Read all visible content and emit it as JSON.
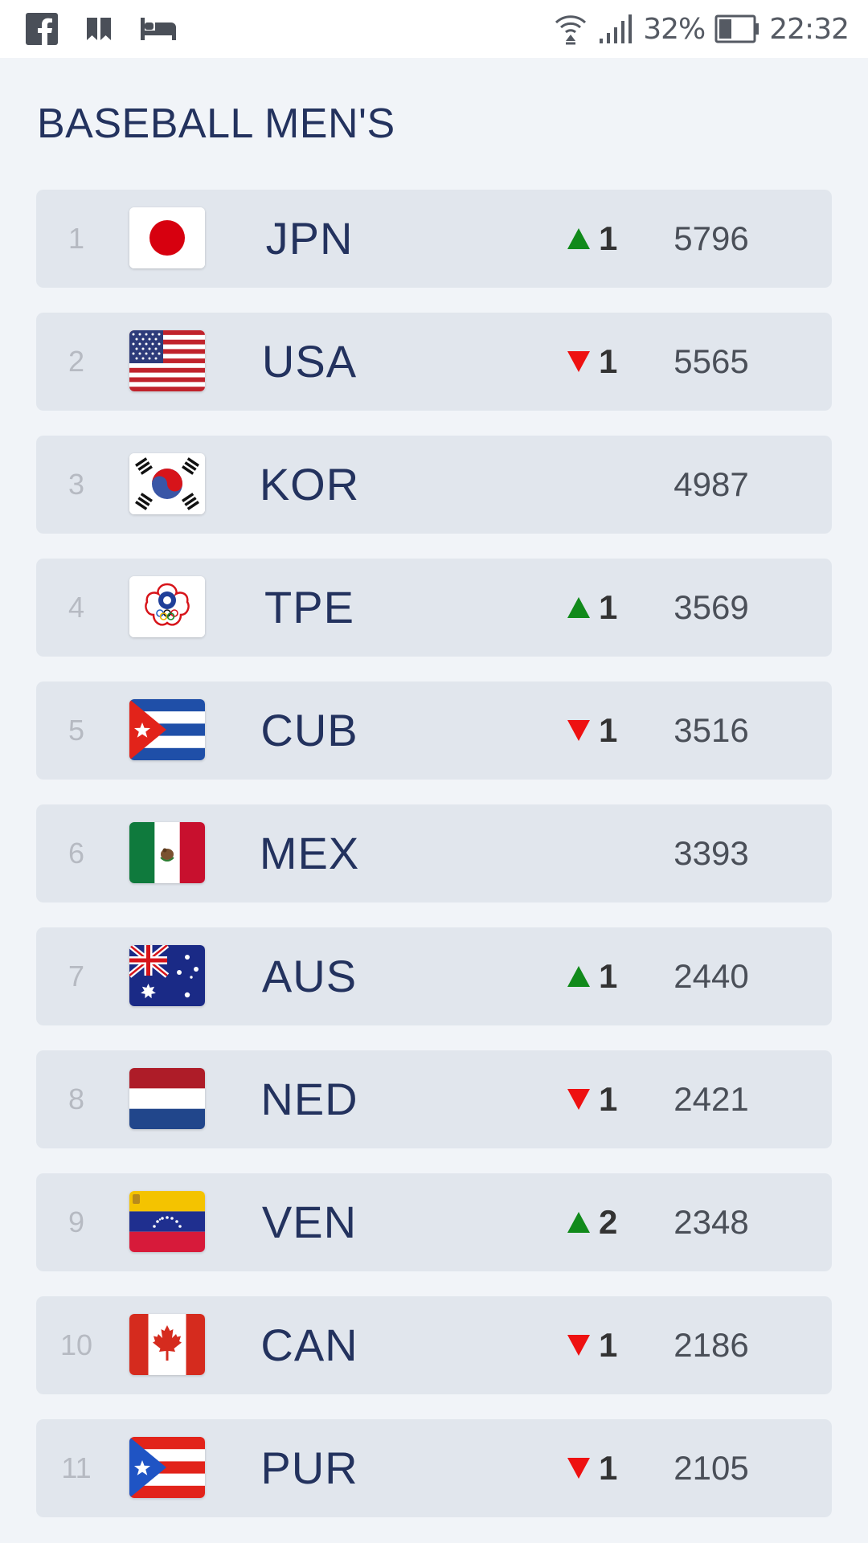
{
  "status_bar": {
    "app_icons": [
      "facebook-icon",
      "bookmark-icon",
      "bed-icon"
    ],
    "battery": "32%",
    "time": "22:32"
  },
  "page": {
    "title": "BASEBALL MEN'S"
  },
  "colors": {
    "up": "#118a1b",
    "down": "#ee1111",
    "row_bg": "#e1e6ed",
    "title": "#23325e"
  },
  "rankings": [
    {
      "rank": "1",
      "code": "JPN",
      "flag": "japan-flag-icon",
      "direction": "up",
      "change": "1",
      "points": "5796"
    },
    {
      "rank": "2",
      "code": "USA",
      "flag": "usa-flag-icon",
      "direction": "down",
      "change": "1",
      "points": "5565"
    },
    {
      "rank": "3",
      "code": "KOR",
      "flag": "korea-flag-icon",
      "direction": "",
      "change": "",
      "points": "4987"
    },
    {
      "rank": "4",
      "code": "TPE",
      "flag": "chinese-taipei-flag-icon",
      "direction": "up",
      "change": "1",
      "points": "3569"
    },
    {
      "rank": "5",
      "code": "CUB",
      "flag": "cuba-flag-icon",
      "direction": "down",
      "change": "1",
      "points": "3516"
    },
    {
      "rank": "6",
      "code": "MEX",
      "flag": "mexico-flag-icon",
      "direction": "",
      "change": "",
      "points": "3393"
    },
    {
      "rank": "7",
      "code": "AUS",
      "flag": "australia-flag-icon",
      "direction": "up",
      "change": "1",
      "points": "2440"
    },
    {
      "rank": "8",
      "code": "NED",
      "flag": "netherlands-flag-icon",
      "direction": "down",
      "change": "1",
      "points": "2421"
    },
    {
      "rank": "9",
      "code": "VEN",
      "flag": "venezuela-flag-icon",
      "direction": "up",
      "change": "2",
      "points": "2348"
    },
    {
      "rank": "10",
      "code": "CAN",
      "flag": "canada-flag-icon",
      "direction": "down",
      "change": "1",
      "points": "2186"
    },
    {
      "rank": "11",
      "code": "PUR",
      "flag": "puerto-rico-flag-icon",
      "direction": "down",
      "change": "1",
      "points": "2105"
    }
  ]
}
